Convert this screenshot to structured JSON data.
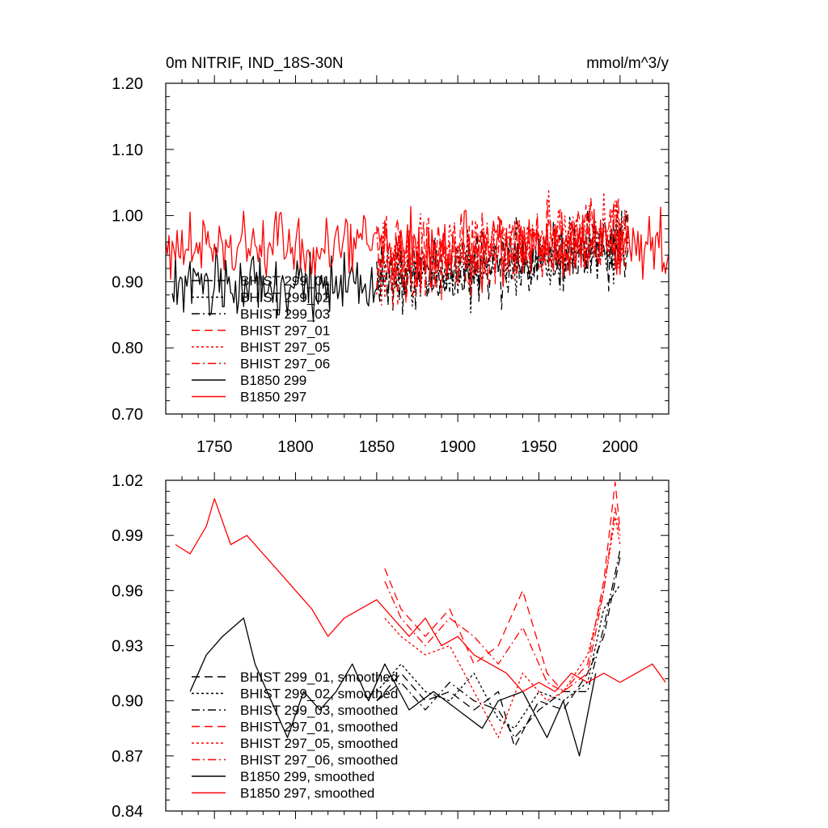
{
  "chart_data": [
    {
      "type": "line",
      "title": "0m NITRIF, IND_18S-30N",
      "units": "mmol/m^3/y",
      "xlim": [
        1720,
        2030
      ],
      "ylim": [
        0.7,
        1.2
      ],
      "xticks": [
        1750,
        1800,
        1850,
        1900,
        1950,
        2000
      ],
      "xtick_labels": [
        "1750",
        "1800",
        "1850",
        "1900",
        "1950",
        "2000"
      ],
      "yticks": [
        0.7,
        0.8,
        0.9,
        1.0,
        1.1,
        1.2
      ],
      "ytick_labels": [
        "0.70",
        "0.80",
        "0.90",
        "1.00",
        "1.10",
        "1.20"
      ],
      "grid": false,
      "legend_position": "lower-left",
      "series": [
        {
          "name": "BHIST 299_01",
          "color": "#000000",
          "style": "longdash",
          "x_range": [
            1850,
            2005
          ],
          "mean": 0.905,
          "trend": 0.0003,
          "amp": 0.055,
          "seed": 11
        },
        {
          "name": "BHIST 299_02",
          "color": "#000000",
          "style": "dot",
          "x_range": [
            1850,
            2005
          ],
          "mean": 0.905,
          "trend": 0.0003,
          "amp": 0.055,
          "seed": 12
        },
        {
          "name": "BHIST 299_03",
          "color": "#000000",
          "style": "dashdot",
          "x_range": [
            1850,
            2005
          ],
          "mean": 0.905,
          "trend": 0.0003,
          "amp": 0.055,
          "seed": 13
        },
        {
          "name": "BHIST 297_01",
          "color": "#ff0000",
          "style": "longdash",
          "x_range": [
            1850,
            2005
          ],
          "mean": 0.93,
          "trend": 0.0003,
          "amp": 0.06,
          "seed": 21
        },
        {
          "name": "BHIST 297_05",
          "color": "#ff0000",
          "style": "dot",
          "x_range": [
            1850,
            2005
          ],
          "mean": 0.93,
          "trend": 0.0003,
          "amp": 0.06,
          "seed": 22
        },
        {
          "name": "BHIST 297_06",
          "color": "#ff0000",
          "style": "dashdot",
          "x_range": [
            1850,
            2005
          ],
          "mean": 0.93,
          "trend": 0.0003,
          "amp": 0.06,
          "seed": 23
        },
        {
          "name": "B1850 299",
          "color": "#000000",
          "style": "solid",
          "x_range": [
            1724,
            1850
          ],
          "mean": 0.895,
          "trend": 0.0,
          "amp": 0.05,
          "seed": 31
        },
        {
          "name": "B1850 297",
          "color": "#ff0000",
          "style": "solid",
          "x_range": [
            1720,
            2030
          ],
          "mean": 0.95,
          "trend": 0.0,
          "amp": 0.055,
          "seed": 41
        }
      ]
    },
    {
      "type": "line",
      "title": "",
      "xlim": [
        1720,
        2030
      ],
      "ylim": [
        0.84,
        1.02
      ],
      "xticks": [
        1750,
        1800,
        1850,
        1900,
        1950,
        2000
      ],
      "xtick_labels": [],
      "yticks": [
        0.84,
        0.87,
        0.9,
        0.93,
        0.96,
        0.99,
        1.02
      ],
      "ytick_labels": [
        "0.84",
        "0.87",
        "0.90",
        "0.93",
        "0.96",
        "0.99",
        "1.02"
      ],
      "grid": false,
      "legend_position": "lower-left",
      "series": [
        {
          "name": "BHIST 299_01, smoothed",
          "color": "#000000",
          "style": "longdash",
          "x": [
            1850,
            1865,
            1880,
            1895,
            1910,
            1925,
            1935,
            1950,
            1965,
            1980,
            1990,
            2000
          ],
          "y": [
            0.9,
            0.915,
            0.9,
            0.905,
            0.895,
            0.905,
            0.875,
            0.9,
            0.895,
            0.915,
            0.935,
            0.978
          ]
        },
        {
          "name": "BHIST 299_02, smoothed",
          "color": "#000000",
          "style": "dot",
          "x": [
            1850,
            1865,
            1880,
            1895,
            1910,
            1925,
            1935,
            1950,
            1965,
            1980,
            1990,
            2000
          ],
          "y": [
            0.905,
            0.92,
            0.905,
            0.9,
            0.915,
            0.89,
            0.885,
            0.905,
            0.9,
            0.91,
            0.95,
            0.963
          ]
        },
        {
          "name": "BHIST 299_03, smoothed",
          "color": "#000000",
          "style": "dashdot",
          "x": [
            1850,
            1865,
            1880,
            1895,
            1910,
            1925,
            1935,
            1950,
            1965,
            1980,
            1990,
            2000
          ],
          "y": [
            0.9,
            0.91,
            0.895,
            0.91,
            0.9,
            0.895,
            0.88,
            0.895,
            0.905,
            0.905,
            0.94,
            0.982
          ]
        },
        {
          "name": "BHIST 297_01, smoothed",
          "color": "#ff0000",
          "style": "longdash",
          "x": [
            1855,
            1865,
            1880,
            1895,
            1910,
            1925,
            1940,
            1955,
            1965,
            1980,
            1990,
            1997,
            2000
          ],
          "y": [
            0.972,
            0.95,
            0.935,
            0.95,
            0.92,
            0.93,
            0.96,
            0.915,
            0.905,
            0.92,
            0.965,
            1.019,
            0.993
          ]
        },
        {
          "name": "BHIST 297_05, smoothed",
          "color": "#ff0000",
          "style": "dot",
          "x": [
            1855,
            1865,
            1880,
            1895,
            1910,
            1925,
            1940,
            1955,
            1965,
            1980,
            1990,
            1997,
            2000
          ],
          "y": [
            0.945,
            0.935,
            0.925,
            0.93,
            0.905,
            0.88,
            0.915,
            0.9,
            0.905,
            0.925,
            0.96,
            1.0,
            0.985
          ]
        },
        {
          "name": "BHIST 297_06, smoothed",
          "color": "#ff0000",
          "style": "dashdot",
          "x": [
            1855,
            1865,
            1880,
            1895,
            1910,
            1925,
            1940,
            1955,
            1965,
            1980,
            1990,
            1997,
            2000
          ],
          "y": [
            0.965,
            0.945,
            0.93,
            0.945,
            0.935,
            0.92,
            0.94,
            0.91,
            0.905,
            0.915,
            0.96,
            1.005,
            0.99
          ]
        },
        {
          "name": "B1850 299, smoothed",
          "color": "#000000",
          "style": "solid",
          "x": [
            1735,
            1745,
            1755,
            1768,
            1775,
            1785,
            1795,
            1805,
            1815,
            1825,
            1835,
            1845,
            1855,
            1870,
            1885,
            1900,
            1915,
            1925,
            1940,
            1955,
            1965,
            1975,
            1985
          ],
          "y": [
            0.905,
            0.925,
            0.935,
            0.945,
            0.92,
            0.9,
            0.88,
            0.905,
            0.895,
            0.905,
            0.92,
            0.9,
            0.92,
            0.895,
            0.905,
            0.895,
            0.885,
            0.9,
            0.905,
            0.88,
            0.9,
            0.87,
            0.915
          ]
        },
        {
          "name": "B1850 297, smoothed",
          "color": "#ff0000",
          "style": "solid",
          "x": [
            1726,
            1735,
            1745,
            1750,
            1760,
            1770,
            1780,
            1790,
            1800,
            1810,
            1820,
            1830,
            1840,
            1850,
            1860,
            1870,
            1880,
            1890,
            1900,
            1910,
            1920,
            1930,
            1940,
            1950,
            1960,
            1970,
            1980,
            1990,
            2000,
            2010,
            2020,
            2028
          ],
          "y": [
            0.985,
            0.98,
            0.995,
            1.01,
            0.985,
            0.99,
            0.98,
            0.97,
            0.96,
            0.95,
            0.935,
            0.945,
            0.95,
            0.955,
            0.945,
            0.935,
            0.945,
            0.93,
            0.935,
            0.925,
            0.92,
            0.915,
            0.905,
            0.91,
            0.905,
            0.915,
            0.91,
            0.915,
            0.91,
            0.915,
            0.92,
            0.91
          ]
        }
      ]
    }
  ]
}
